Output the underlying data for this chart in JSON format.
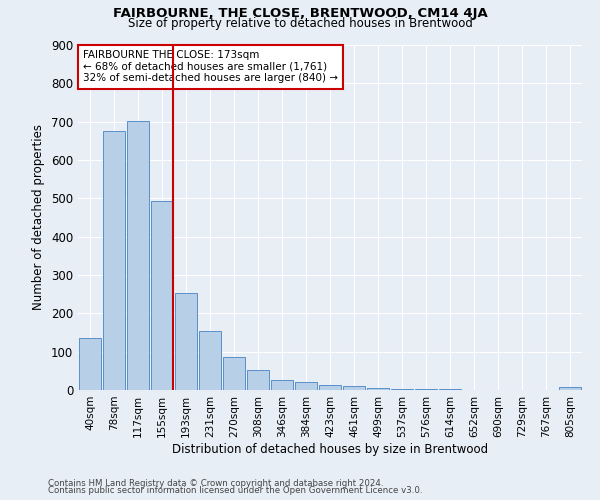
{
  "title": "FAIRBOURNE, THE CLOSE, BRENTWOOD, CM14 4JA",
  "subtitle": "Size of property relative to detached houses in Brentwood",
  "xlabel": "Distribution of detached houses by size in Brentwood",
  "ylabel": "Number of detached properties",
  "footnote1": "Contains HM Land Registry data © Crown copyright and database right 2024.",
  "footnote2": "Contains public sector information licensed under the Open Government Licence v3.0.",
  "bar_labels": [
    "40sqm",
    "78sqm",
    "117sqm",
    "155sqm",
    "193sqm",
    "231sqm",
    "270sqm",
    "308sqm",
    "346sqm",
    "384sqm",
    "423sqm",
    "461sqm",
    "499sqm",
    "537sqm",
    "576sqm",
    "614sqm",
    "652sqm",
    "690sqm",
    "729sqm",
    "767sqm",
    "805sqm"
  ],
  "bar_values": [
    135,
    675,
    703,
    492,
    253,
    153,
    85,
    52,
    26,
    20,
    13,
    11,
    5,
    3,
    2,
    2,
    1,
    1,
    1,
    0,
    8
  ],
  "bar_color": "#b8cfe8",
  "bar_edge_color": "#5b8fc9",
  "vline_color": "#cc0000",
  "annotation_text": "FAIRBOURNE THE CLOSE: 173sqm\n← 68% of detached houses are smaller (1,761)\n32% of semi-detached houses are larger (840) →",
  "annotation_box_color": "#ffffff",
  "annotation_box_edge": "#cc0000",
  "ylim": [
    0,
    900
  ],
  "yticks": [
    0,
    100,
    200,
    300,
    400,
    500,
    600,
    700,
    800,
    900
  ],
  "bg_color": "#e8eef6",
  "plot_bg_color": "#e8eef6",
  "grid_color": "#ffffff"
}
